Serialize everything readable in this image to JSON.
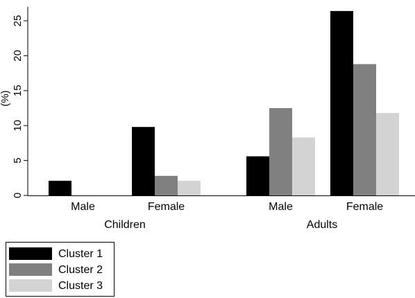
{
  "chart_data": {
    "type": "bar",
    "title": "",
    "ylabel": "(%)",
    "ylim": [
      0,
      27
    ],
    "yticks": [
      0,
      5,
      10,
      15,
      20,
      25
    ],
    "groups": [
      {
        "name": "Children",
        "categories": [
          "Male",
          "Female"
        ]
      },
      {
        "name": "Adults",
        "categories": [
          "Male",
          "Female"
        ]
      }
    ],
    "series": [
      {
        "name": "Cluster 1",
        "color": "#000000",
        "values": [
          2.1,
          9.8,
          5.6,
          26.4
        ]
      },
      {
        "name": "Cluster 2",
        "color": "#808080",
        "values": [
          0,
          2.8,
          12.5,
          18.8
        ]
      },
      {
        "name": "Cluster 3",
        "color": "#d3d3d3",
        "values": [
          0,
          2.1,
          8.3,
          11.8
        ]
      }
    ],
    "legend_position": "bottom-left",
    "grid": false
  }
}
